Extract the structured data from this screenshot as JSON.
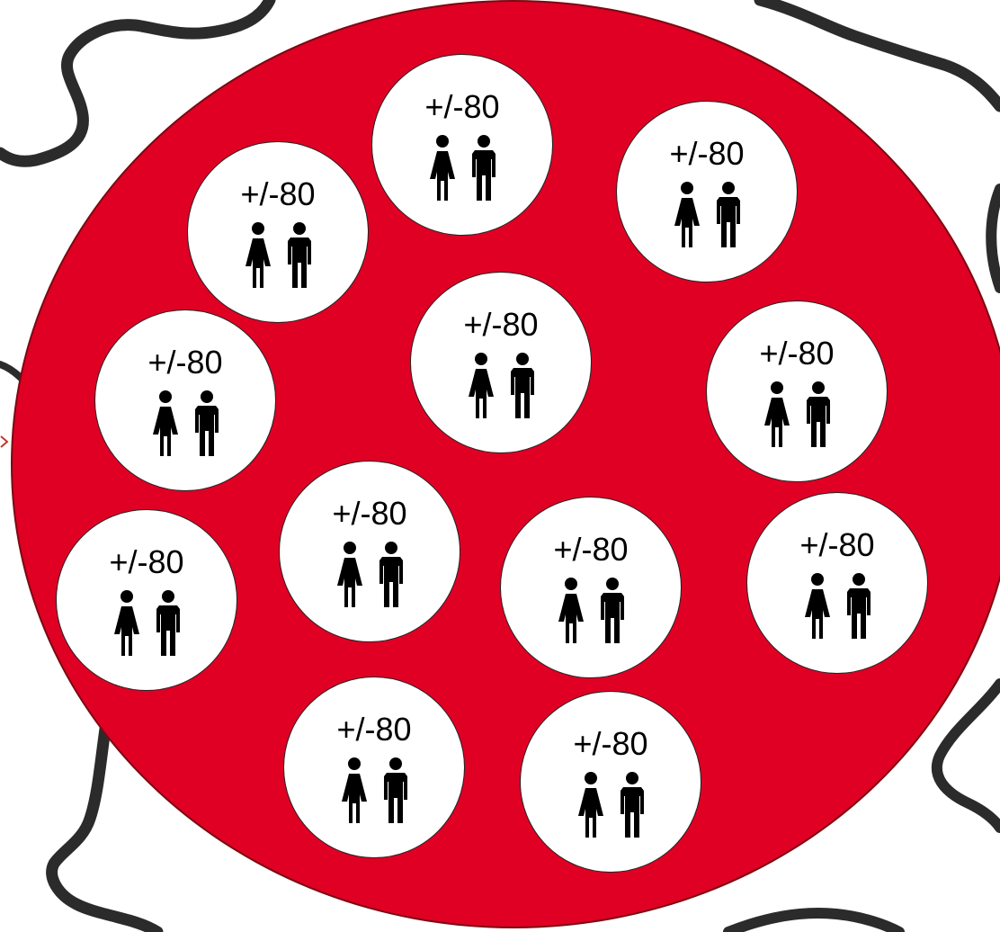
{
  "diagram": {
    "colors": {
      "big_circle_fill": "#df0024",
      "bubble_fill": "#ffffff",
      "map_outline": "#2b2b2b",
      "icon": "#000000"
    },
    "icons": {
      "female": "female-person-icon",
      "male": "male-person-icon"
    },
    "groups": [
      {
        "label": "+/-80"
      },
      {
        "label": "+/-80"
      },
      {
        "label": "+/-80"
      },
      {
        "label": "+/-80"
      },
      {
        "label": "+/-80"
      },
      {
        "label": "+/-80"
      },
      {
        "label": "+/-80"
      },
      {
        "label": "+/-80"
      },
      {
        "label": "+/-80"
      },
      {
        "label": "+/-80"
      },
      {
        "label": "+/-80"
      },
      {
        "label": "+/-80"
      }
    ]
  }
}
